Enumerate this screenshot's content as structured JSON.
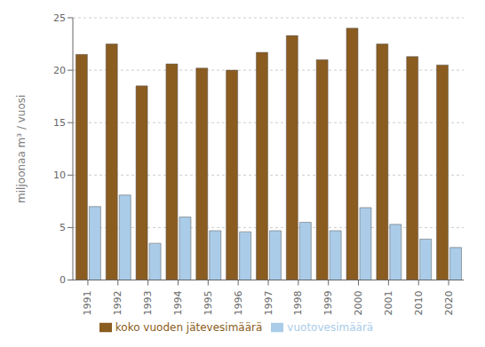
{
  "chart_data": {
    "type": "bar",
    "categories": [
      "1991",
      "1992",
      "1993",
      "1994",
      "1995",
      "1996",
      "1997",
      "1998",
      "1999",
      "2000",
      "2001",
      "2010",
      "2020"
    ],
    "series": [
      {
        "name": "koko vuoden jätevesimäärä",
        "color": "#8B5C20",
        "values": [
          21.5,
          22.5,
          18.5,
          20.6,
          20.2,
          20.0,
          21.7,
          23.3,
          21.0,
          24.0,
          22.5,
          21.3,
          20.5
        ]
      },
      {
        "name": "vuotovesimäärä",
        "color": "#AACCE8",
        "values": [
          7.0,
          8.1,
          3.5,
          6.0,
          4.7,
          4.6,
          4.7,
          5.5,
          4.7,
          6.9,
          5.3,
          3.9,
          3.1
        ]
      }
    ],
    "y_label": "miljoonaa m³ / vuosi",
    "ylim": [
      0,
      25
    ],
    "yticks": [
      0,
      5,
      10,
      15,
      20,
      25
    ],
    "grid": true,
    "legend": "bottom"
  }
}
